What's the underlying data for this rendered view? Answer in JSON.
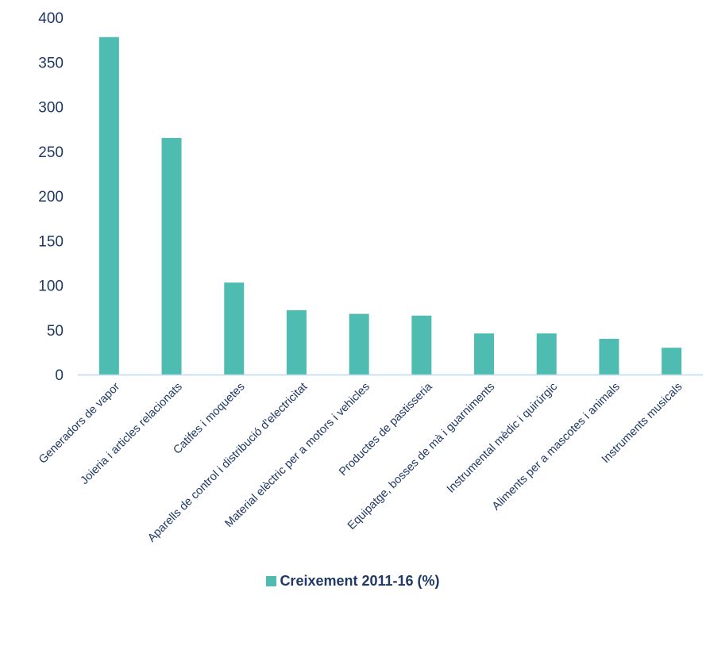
{
  "chart_data": {
    "type": "bar",
    "categories": [
      "Generadors de vapor",
      "Joieria i articles relacionats",
      "Catifes i moquetes",
      "Aparells de control i distribució d'electricitat",
      "Material elèctric per a motors i vehicles",
      "Productes de pastisseria",
      "Equipatge, bosses de mà i guarniments",
      "Instrumental mèdic i quirúrgic",
      "Aliments per a mascotes i animals",
      "Instruments musicals"
    ],
    "series": [
      {
        "name": "Creixement 2011-16 (%)",
        "values": [
          378,
          265,
          103,
          72,
          68,
          66,
          46,
          46,
          40,
          30
        ],
        "color": "#4fbcb1"
      }
    ],
    "yticks": [
      0,
      50,
      100,
      150,
      200,
      250,
      300,
      350,
      400
    ],
    "ylim": [
      0,
      400
    ],
    "xlabel": "",
    "ylabel": "",
    "grid": false,
    "legend_position": "bottom",
    "axis_color": "#bcd7ee",
    "text_color": "#1f3864"
  }
}
